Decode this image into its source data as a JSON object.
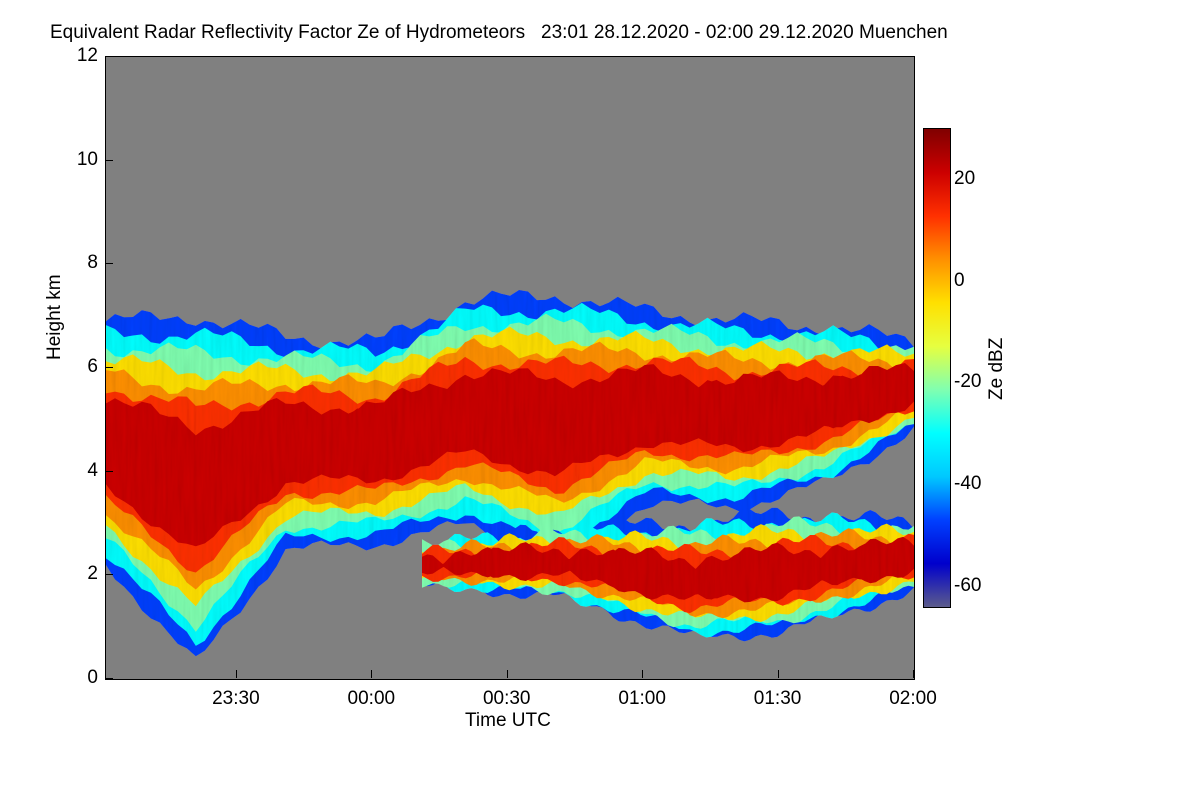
{
  "chart_data": {
    "type": "heatmap",
    "title": "Equivalent Radar Reflectivity Factor Ze of Hydrometeors   23:01 28.12.2020 - 02:00 29.12.2020 Muenchen",
    "xlabel": "Time UTC",
    "ylabel": "Height km",
    "colorbar_label": "Ze dBZ",
    "x_ticks": [
      "23:30",
      "00:00",
      "00:30",
      "01:00",
      "01:30",
      "02:00"
    ],
    "x_tick_minutes": [
      29,
      59,
      89,
      119,
      149,
      179
    ],
    "xlim_minutes": [
      0,
      179
    ],
    "y_ticks": [
      "0",
      "2",
      "4",
      "6",
      "8",
      "10",
      "12"
    ],
    "ylim": [
      0,
      12
    ],
    "colorbar_ticks": [
      "20",
      "0",
      "-20",
      "-40",
      "-60"
    ],
    "colorbar_range": [
      -64,
      30
    ],
    "background_color": "#808080",
    "colormap": [
      "#5c5c8c",
      "#0000cc",
      "#0040ff",
      "#00c8ff",
      "#00ffff",
      "#80ffb0",
      "#e6ff40",
      "#ffe000",
      "#ff9000",
      "#ff3000",
      "#cc0000",
      "#800000"
    ],
    "cloud_layers": [
      {
        "name": "upper",
        "time_minutes": [
          0,
          20,
          40,
          60,
          80,
          100,
          120,
          140,
          160,
          179
        ],
        "top_km": [
          6.9,
          7.0,
          6.6,
          6.5,
          7.3,
          7.4,
          7.1,
          6.9,
          6.8,
          6.5
        ],
        "base_km": [
          2.2,
          0.3,
          2.5,
          2.6,
          3.0,
          2.3,
          3.4,
          3.3,
          3.8,
          4.8
        ]
      },
      {
        "name": "lower",
        "time_minutes": [
          70,
          100,
          130,
          150,
          179
        ],
        "top_km": [
          2.6,
          2.9,
          3.0,
          3.2,
          3.0
        ],
        "base_km": [
          1.8,
          1.6,
          0.8,
          0.9,
          1.7
        ]
      }
    ],
    "max_reflectivity_dbz": 22
  }
}
